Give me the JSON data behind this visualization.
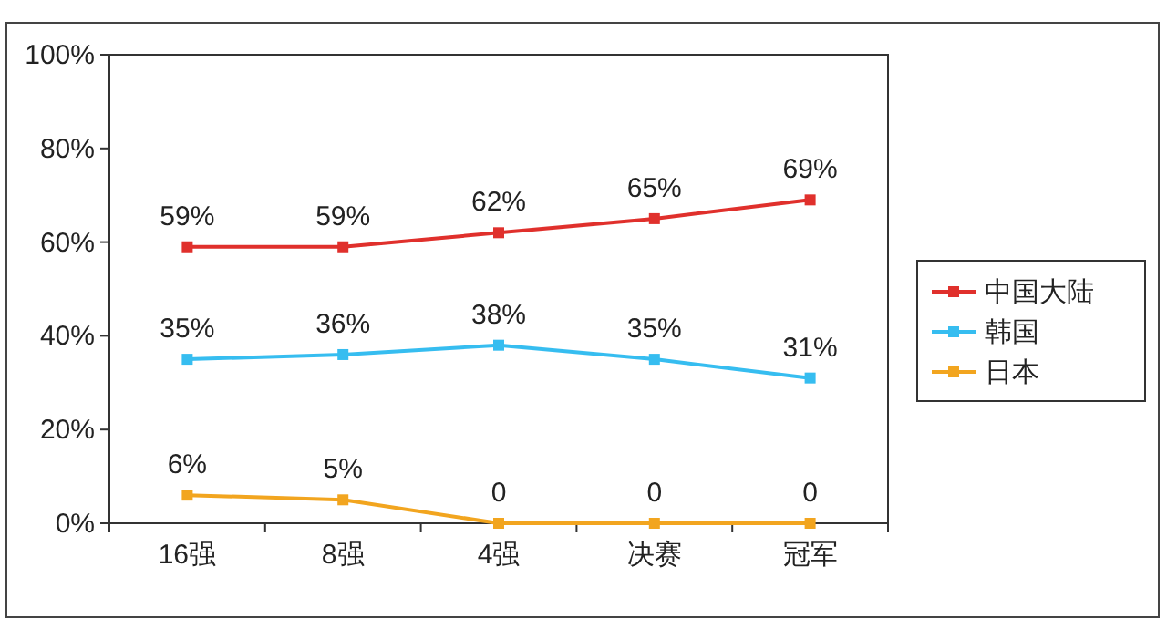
{
  "chart_data": {
    "type": "line",
    "categories": [
      "16强",
      "8强",
      "4强",
      "决赛",
      "冠军"
    ],
    "series": [
      {
        "name": "中国大陆",
        "color": "#e0302c",
        "values": [
          59,
          59,
          62,
          65,
          69
        ],
        "value_labels": [
          "59%",
          "59%",
          "62%",
          "65%",
          "69%"
        ]
      },
      {
        "name": "韩国",
        "color": "#36bdf0",
        "values": [
          35,
          36,
          38,
          35,
          31
        ],
        "value_labels": [
          "35%",
          "36%",
          "38%",
          "35%",
          "31%"
        ]
      },
      {
        "name": "日本",
        "color": "#f2a51f",
        "values": [
          6,
          5,
          0,
          0,
          0
        ],
        "value_labels": [
          "6%",
          "5%",
          "0",
          "0",
          "0"
        ]
      }
    ],
    "ylim": [
      0,
      100
    ],
    "yticks": [
      {
        "value": 0,
        "label": "0%"
      },
      {
        "value": 20,
        "label": "20%"
      },
      {
        "value": 40,
        "label": "40%"
      },
      {
        "value": 60,
        "label": "60%"
      },
      {
        "value": 80,
        "label": "80%"
      },
      {
        "value": 100,
        "label": "100%"
      }
    ],
    "legend": "right",
    "marker": "square",
    "line_style": "solid",
    "grid": false
  }
}
